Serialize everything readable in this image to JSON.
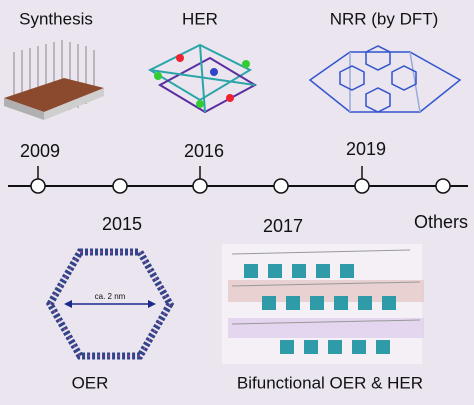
{
  "panels": {
    "top": [
      "Synthesis",
      "HER",
      "NRR (by DFT)"
    ],
    "bottom": [
      "OER",
      "Bifunctional OER & HER"
    ]
  },
  "timeline": {
    "above": [
      "2009",
      "2016",
      "2019"
    ],
    "below": [
      "2015",
      "2017",
      "Others"
    ]
  },
  "annotation": "ca. 2 nm"
}
